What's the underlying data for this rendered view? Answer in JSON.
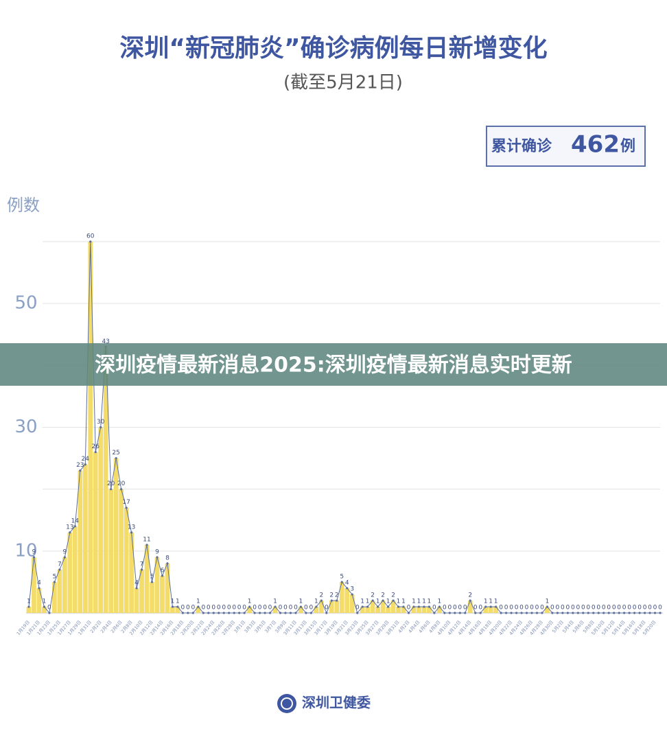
{
  "chart_data": {
    "type": "line",
    "title": "深圳“新冠肺炎”确诊病例每日新增变化",
    "subtitle": "(截至5月21日)",
    "total_box": {
      "label": "累计确诊",
      "value": 462,
      "unit": "例"
    },
    "ylabel": "例数",
    "categories": [
      "1月19日",
      null,
      "1月21日",
      null,
      "1月23日",
      null,
      "1月25日",
      null,
      "1月27日",
      null,
      "1月29日",
      null,
      "1月31日",
      null,
      "2月2日",
      null,
      "2月4日",
      null,
      "2月6日",
      null,
      "2月8日",
      null,
      "2月10日",
      null,
      "2月12日",
      null,
      "2月14日",
      null,
      "2月16日",
      null,
      "2月18日",
      null,
      "2月20日",
      null,
      "2月22日",
      null,
      "2月24日",
      null,
      "2月26日",
      null,
      "2月28日",
      null,
      "3月1日",
      null,
      "3月3日",
      null,
      "3月5日",
      null,
      "3月7日",
      null,
      "3月9日",
      null,
      "3月11日",
      null,
      "3月13日",
      null,
      "3月15日",
      null,
      "3月17日",
      null,
      "3月19日",
      null,
      "3月21日",
      null,
      "3月23日",
      null,
      "3月25日",
      null,
      "3月27日",
      null,
      "3月29日",
      null,
      "3月31日",
      null,
      "4月2日",
      null,
      "4月4日",
      null,
      "4月6日",
      null,
      "4月8日",
      null,
      "4月10日",
      null,
      "4月12日",
      null,
      "4月14日",
      null,
      "4月16日",
      null,
      "4月18日",
      null,
      "4月20日",
      null,
      "4月22日",
      null,
      "4月24日",
      null,
      "4月26日",
      null,
      "4月28日",
      null,
      "4月30日",
      null,
      "5月2日",
      null,
      "5月4日",
      null,
      "5月6日",
      null,
      "5月8日",
      null,
      "5月10日",
      null,
      "5月12日",
      null,
      "5月14日",
      null,
      "5月16日",
      null,
      "5月18日",
      null,
      "5月20日",
      null
    ],
    "series": [
      {
        "color": "#5c6f9c",
        "fill": "#f3dc6a",
        "values": [
          1,
          9,
          4,
          1,
          0,
          5,
          7,
          9,
          13,
          14,
          23,
          24,
          60,
          26,
          30,
          43,
          20,
          25,
          20,
          17,
          13,
          4,
          7,
          11,
          5,
          9,
          6,
          8,
          1,
          1,
          0,
          0,
          0,
          1,
          0,
          0,
          0,
          0,
          0,
          0,
          0,
          0,
          0,
          1,
          0,
          0,
          0,
          0,
          1,
          0,
          0,
          0,
          0,
          1,
          0,
          0,
          1,
          2,
          0,
          2,
          2,
          5,
          4,
          3,
          0,
          1,
          1,
          2,
          1,
          2,
          1,
          2,
          1,
          1,
          0,
          1,
          1,
          1,
          1,
          0,
          1,
          0,
          0,
          0,
          0,
          0,
          2,
          0,
          0,
          1,
          1,
          1,
          0,
          0,
          0,
          0,
          0,
          0,
          0,
          0,
          0,
          1,
          0,
          0,
          0,
          0,
          0,
          0,
          0,
          0,
          0,
          0,
          0,
          0,
          0,
          0,
          0,
          0,
          0,
          0,
          0,
          0,
          0,
          0
        ]
      }
    ],
    "ylim": [
      0,
      60
    ],
    "yticks": [
      10,
      30,
      50
    ],
    "gridlines": [
      10,
      20,
      30,
      40,
      50,
      60
    ],
    "grid": true
  },
  "banner": "深圳疫情最新消息2025:深圳疫情最新消息实时更新",
  "footer": "深圳卫健委"
}
